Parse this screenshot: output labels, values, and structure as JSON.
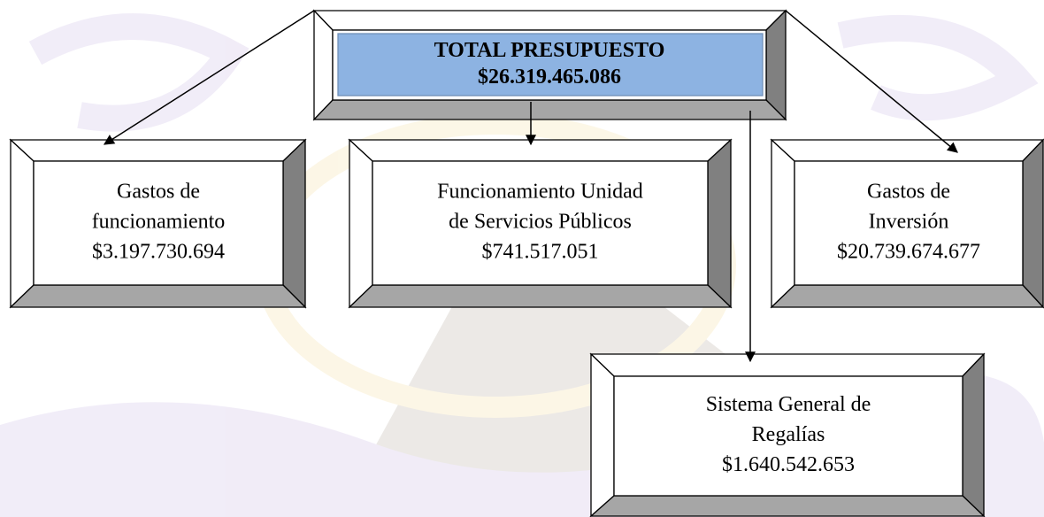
{
  "nodes": [
    {
      "lines": [
        "TOTAL PRESUPUESTO",
        "$26.319.465.086"
      ]
    },
    {
      "lines": [
        "Gastos de",
        "funcionamiento",
        "$3.197.730.694"
      ]
    },
    {
      "lines": [
        "Funcionamiento Unidad",
        "de Servicios Públicos",
        "$741.517.051"
      ]
    },
    {
      "lines": [
        "Gastos de",
        "Inversión",
        "$20.739.674.677"
      ]
    },
    {
      "lines": [
        "Sistema General de",
        "Regalías",
        "$1.640.542.653"
      ]
    }
  ]
}
